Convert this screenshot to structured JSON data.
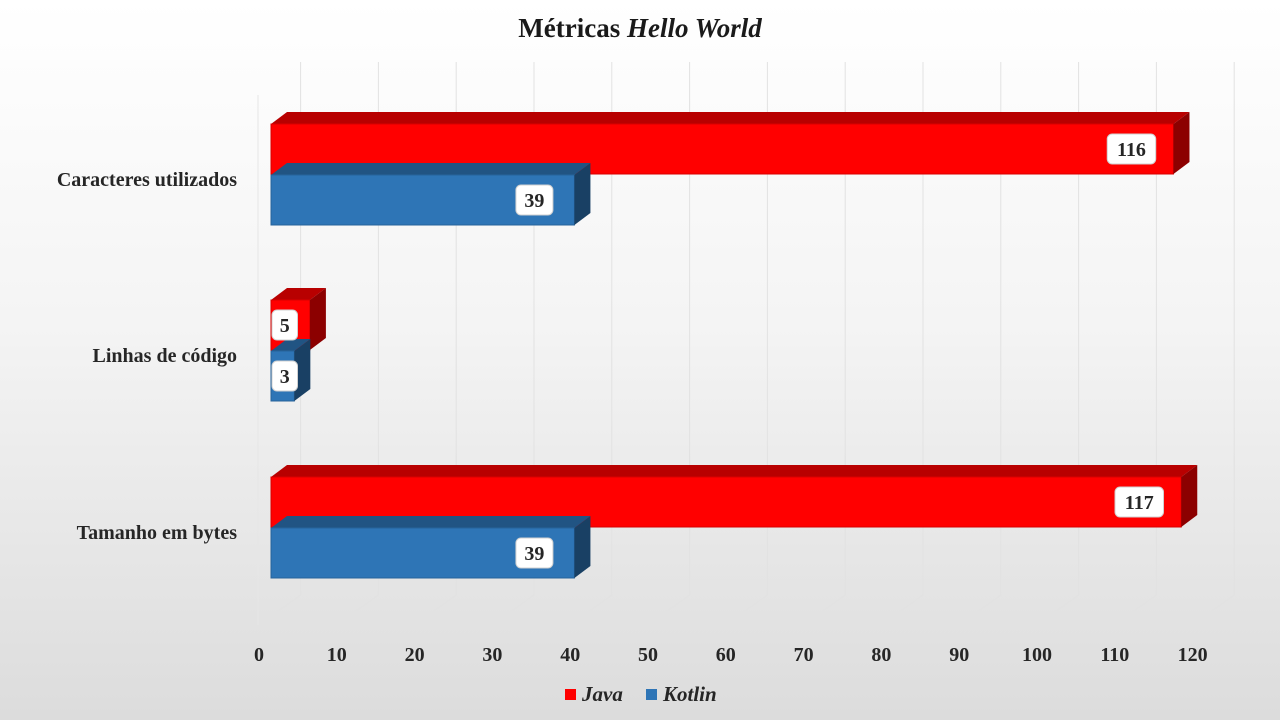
{
  "title": {
    "regular": "Métricas",
    "italic": "Hello World"
  },
  "colors": {
    "java": "#ff0000",
    "kotlin": "#2e75b6"
  },
  "chart_data": {
    "type": "bar",
    "orientation": "horizontal",
    "style": "3d-clustered",
    "categories": [
      "Caracteres utilizados",
      "Linhas de código",
      "Tamanho em bytes"
    ],
    "series": [
      {
        "name": "Java",
        "values": [
          116,
          5,
          117
        ]
      },
      {
        "name": "Kotlin",
        "values": [
          39,
          3,
          39
        ]
      }
    ],
    "xlim": [
      0,
      120
    ],
    "xticks": [
      "0",
      "10",
      "20",
      "30",
      "40",
      "50",
      "60",
      "70",
      "80",
      "90",
      "100",
      "110",
      "120"
    ],
    "grid": true,
    "legend": "bottom",
    "data_labels": true
  }
}
